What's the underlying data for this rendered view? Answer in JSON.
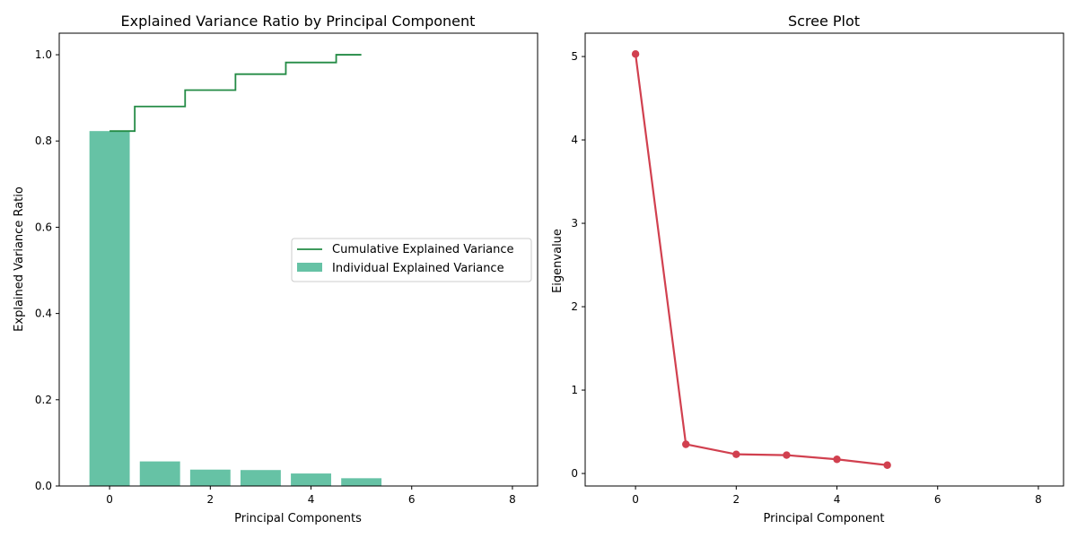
{
  "chart_data": [
    {
      "type": "bar",
      "title": "Explained Variance Ratio by Principal Component",
      "xlabel": "Principal Components",
      "ylabel": "Explained Variance Ratio",
      "xlim": [
        -1,
        8.5
      ],
      "ylim": [
        0,
        1.05
      ],
      "xticks": [
        0,
        2,
        4,
        6,
        8
      ],
      "yticks": [
        0.0,
        0.2,
        0.4,
        0.6,
        0.8,
        1.0
      ],
      "xtick_labels": [
        "0",
        "2",
        "4",
        "6",
        "8"
      ],
      "ytick_labels": [
        "0.0",
        "0.2",
        "0.4",
        "0.6",
        "0.8",
        "1.0"
      ],
      "grid": false,
      "legend_position": "center-right",
      "x": [
        0,
        1,
        2,
        3,
        4,
        5
      ],
      "series": [
        {
          "name": "Individual Explained Variance",
          "kind": "bar",
          "color": "#66c2a5",
          "values": [
            0.823,
            0.057,
            0.038,
            0.037,
            0.029,
            0.018
          ]
        },
        {
          "name": "Cumulative Explained Variance",
          "kind": "step",
          "color": "#238b45",
          "values": [
            0.823,
            0.88,
            0.918,
            0.955,
            0.982,
            1.0
          ]
        }
      ]
    },
    {
      "type": "line",
      "title": "Scree Plot",
      "xlabel": "Principal Component",
      "ylabel": "Eigenvalue",
      "xlim": [
        -1,
        8.5
      ],
      "ylim": [
        -0.15,
        5.28
      ],
      "xticks": [
        0,
        2,
        4,
        6,
        8
      ],
      "yticks": [
        0,
        1,
        2,
        3,
        4,
        5
      ],
      "xtick_labels": [
        "0",
        "2",
        "4",
        "6",
        "8"
      ],
      "ytick_labels": [
        "0",
        "1",
        "2",
        "3",
        "4",
        "5"
      ],
      "grid": false,
      "x": [
        0,
        1,
        2,
        3,
        4,
        5
      ],
      "series": [
        {
          "name": "",
          "kind": "line-marker",
          "color": "#d1404f",
          "values": [
            5.03,
            0.35,
            0.23,
            0.22,
            0.17,
            0.1
          ]
        }
      ]
    }
  ]
}
